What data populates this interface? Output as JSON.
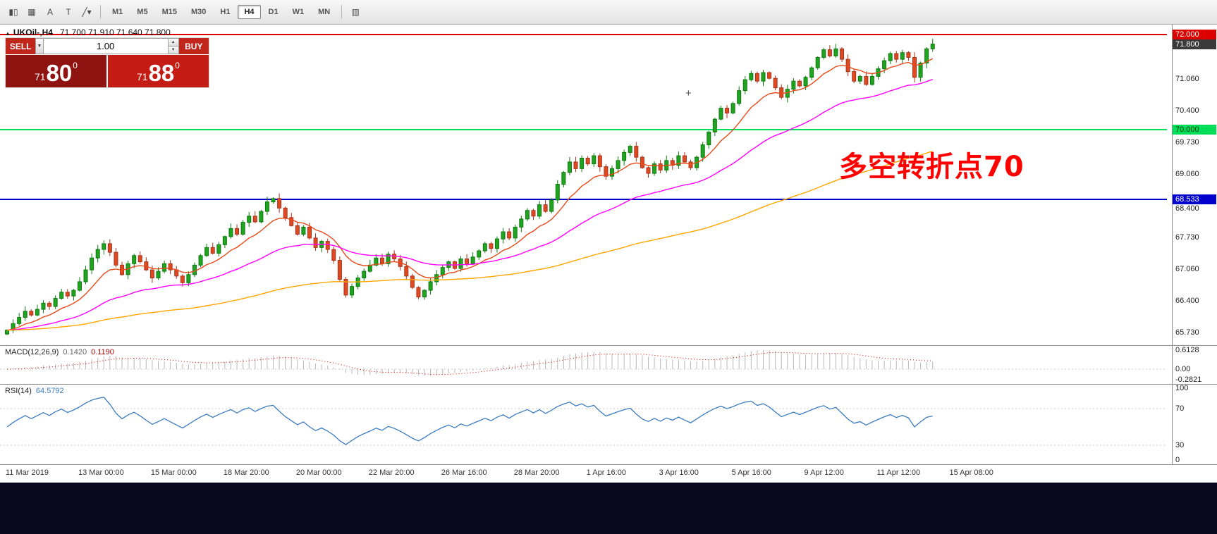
{
  "toolbar": {
    "icons": [
      {
        "name": "candlestick-chart-icon",
        "glyph": "▮▯"
      },
      {
        "name": "grid-icon",
        "glyph": "▦"
      },
      {
        "name": "text-tool-icon",
        "glyph": "A"
      },
      {
        "name": "label-tool-icon",
        "glyph": "T"
      },
      {
        "name": "draw-tools-icon",
        "glyph": "╱▾"
      }
    ],
    "right_icon": {
      "name": "indicator-window-icon",
      "glyph": "▥"
    },
    "timeframes": [
      "M1",
      "M5",
      "M15",
      "M30",
      "H1",
      "H4",
      "D1",
      "W1",
      "MN"
    ],
    "active_timeframe": "H4"
  },
  "chart": {
    "title": "UKOil-,H4",
    "ohlc_text": "71.700 71.910 71.640 71.800",
    "collapse_glyph": "▲",
    "annotation": "多空转折点70",
    "price_axis_plain": [
      "71.060",
      "70.400",
      "69.730",
      "69.060",
      "68.400",
      "67.730",
      "67.060",
      "66.400",
      "65.730"
    ],
    "axis_tags": [
      {
        "text": "72.000",
        "price": 72.0,
        "bg": "#dd0000",
        "fg": "#ffffff"
      },
      {
        "text": "71.800",
        "price": 71.8,
        "bg": "#3a3a3a",
        "fg": "#ffffff"
      },
      {
        "text": "70.000",
        "price": 70.0,
        "bg": "#00df5a",
        "fg": "#003a00"
      },
      {
        "text": "68.533",
        "price": 68.533,
        "bg": "#0000cc",
        "fg": "#ffffff"
      }
    ]
  },
  "order_panel": {
    "sell_label": "SELL",
    "buy_label": "BUY",
    "volume": "1.00",
    "caret_glyph": "▼",
    "spin_up": "▲",
    "spin_down": "▼",
    "sell_price": {
      "small": "71",
      "big": "80",
      "sup": "0"
    },
    "buy_price": {
      "small": "71",
      "big": "88",
      "sup": "0"
    }
  },
  "macd_panel": {
    "label": "MACD(12,26,9)",
    "value_main": "0.1420",
    "value_signal": "0.1190",
    "axis": [
      "0.6128",
      "0.00",
      "-0.2821"
    ]
  },
  "rsi_panel": {
    "label": "RSI(14)",
    "value": "64.5792",
    "axis": [
      "100",
      "70",
      "30",
      "0"
    ]
  },
  "time_axis": [
    "11 Mar 2019",
    "13 Mar 00:00",
    "15 Mar 00:00",
    "18 Mar 20:00",
    "20 Mar 00:00",
    "22 Mar 20:00",
    "26 Mar 16:00",
    "28 Mar 20:00",
    "1 Apr 16:00",
    "3 Apr 16:00",
    "5 Apr 16:00",
    "9 Apr 12:00",
    "11 Apr 12:00",
    "15 Apr 08:00"
  ],
  "colors": {
    "up_candle": "#21a421",
    "up_border": "#0d7a0d",
    "down_candle": "#e04a22",
    "down_border": "#a8321a",
    "ma_fast": "#e64a19",
    "ma_mid": "#ff00ff",
    "ma_slow": "#ffa500",
    "hline_resistance": "#dd0000",
    "hline_pivot": "#00df5a",
    "hline_support": "#0000cc",
    "macd_hist": "#b8b8b8",
    "macd_signal": "#dd0000",
    "rsi_line": "#3b7bbf",
    "sell_red": "#c0261c",
    "sell_dark": "#8f1310",
    "buy_red": "#c41b14",
    "annotation_red": "#ff0000"
  },
  "chart_data": {
    "type": "candlestick",
    "symbol": "UKOil-",
    "timeframe": "H4",
    "title": "UKOil-,H4 71.700 71.910 71.640 71.800",
    "open_first": 65.7,
    "closes": [
      65.78,
      65.92,
      66.05,
      66.18,
      66.1,
      66.22,
      66.35,
      66.28,
      66.45,
      66.58,
      66.5,
      66.62,
      66.8,
      67.05,
      67.3,
      67.48,
      67.6,
      67.42,
      67.15,
      66.95,
      67.18,
      67.35,
      67.22,
      67.05,
      66.88,
      67.02,
      67.18,
      67.05,
      66.92,
      66.78,
      66.95,
      67.15,
      67.35,
      67.52,
      67.4,
      67.58,
      67.75,
      67.92,
      67.8,
      68.05,
      68.18,
      68.06,
      68.28,
      68.48,
      68.55,
      68.35,
      68.15,
      67.98,
      67.8,
      67.95,
      67.72,
      67.52,
      67.65,
      67.48,
      67.25,
      66.85,
      66.52,
      66.7,
      66.88,
      67.02,
      67.15,
      67.3,
      67.18,
      67.38,
      67.28,
      67.12,
      66.92,
      66.68,
      66.48,
      66.62,
      66.8,
      66.95,
      67.1,
      67.22,
      67.08,
      67.28,
      67.18,
      67.32,
      67.45,
      67.6,
      67.5,
      67.7,
      67.85,
      67.72,
      67.95,
      68.12,
      68.3,
      68.18,
      68.42,
      68.28,
      68.52,
      68.85,
      69.1,
      69.32,
      69.18,
      69.4,
      69.28,
      69.45,
      69.22,
      69.02,
      69.18,
      69.35,
      69.52,
      69.65,
      69.42,
      69.2,
      69.08,
      69.28,
      69.15,
      69.35,
      69.25,
      69.45,
      69.32,
      69.2,
      69.42,
      69.68,
      69.95,
      70.22,
      70.45,
      70.35,
      70.55,
      70.82,
      71.05,
      71.18,
      71.02,
      71.2,
      71.08,
      70.88,
      70.68,
      70.85,
      71.02,
      70.92,
      71.1,
      71.3,
      71.52,
      71.68,
      71.55,
      71.7,
      71.48,
      71.22,
      71.02,
      71.12,
      70.95,
      71.12,
      71.28,
      71.45,
      71.6,
      71.48,
      71.62,
      71.52,
      71.1,
      71.4,
      71.7,
      71.8
    ],
    "last_candle": {
      "open": 71.7,
      "high": 71.91,
      "low": 71.64,
      "close": 71.8
    },
    "hlines": [
      {
        "price": 72.0,
        "color": "#dd0000"
      },
      {
        "price": 70.0,
        "color": "#00df5a"
      },
      {
        "price": 68.533,
        "color": "#0000cc"
      }
    ],
    "moving_averages": [
      {
        "period": 10,
        "color": "#e64a19"
      },
      {
        "period": 34,
        "color": "#ff00ff"
      },
      {
        "period": 110,
        "color": "#ffa500"
      }
    ],
    "indicators": [
      {
        "name": "MACD",
        "params": [
          12,
          26,
          9
        ],
        "main": 0.142,
        "signal": 0.119,
        "axis_max": 0.6128,
        "axis_min": -0.2821
      },
      {
        "name": "RSI",
        "params": [
          14
        ],
        "value": 64.5792,
        "levels": [
          70,
          30
        ]
      }
    ]
  }
}
